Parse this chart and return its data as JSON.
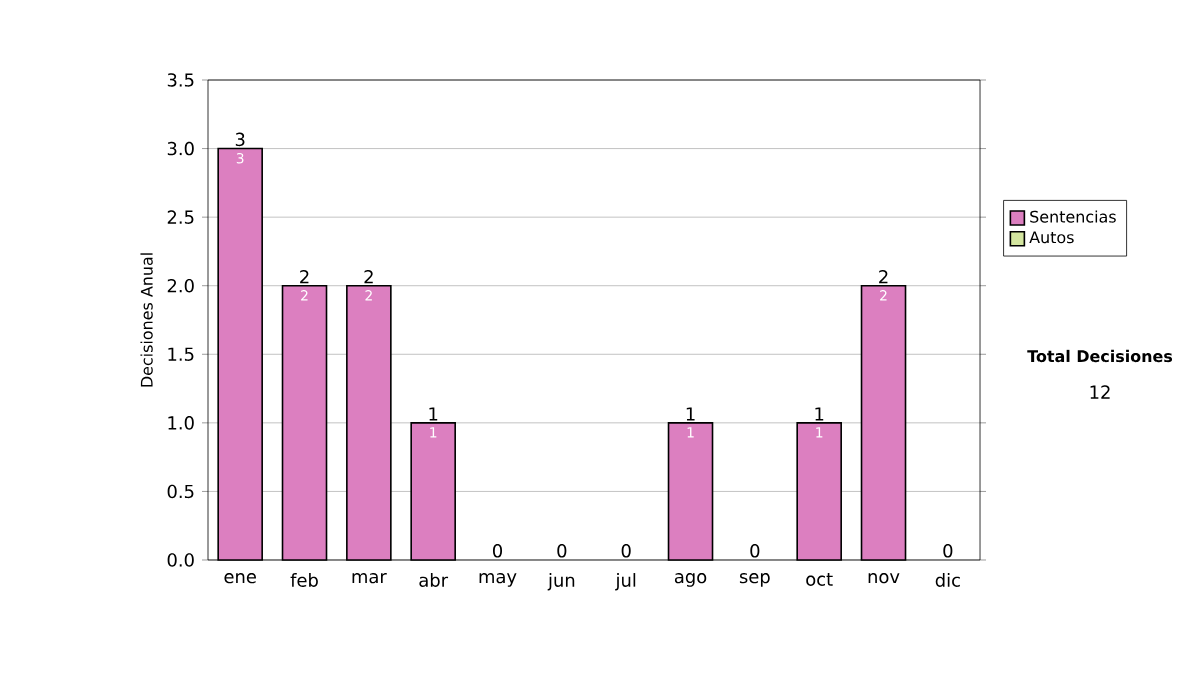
{
  "chart_data": {
    "type": "bar",
    "stacked": true,
    "ylabel": "Decisiones Anual",
    "categories": [
      "ene",
      "feb",
      "mar",
      "abr",
      "may",
      "jun",
      "jul",
      "ago",
      "sep",
      "oct",
      "nov",
      "dic"
    ],
    "series": [
      {
        "name": "Sentencias",
        "color": "#dc7fc0",
        "values": [
          3,
          2,
          2,
          1,
          0,
          0,
          0,
          1,
          0,
          1,
          2,
          0
        ],
        "value_labels": [
          "3",
          "2",
          "2",
          "1",
          null,
          null,
          null,
          "1",
          null,
          "1",
          "2",
          null
        ]
      },
      {
        "name": "Autos",
        "color": "#d4e6a0",
        "values": [
          0,
          0,
          0,
          0,
          0,
          0,
          0,
          0,
          0,
          0,
          0,
          0
        ]
      }
    ],
    "totals": [
      "3",
      "2",
      "2",
      "1",
      "0",
      "0",
      "0",
      "1",
      "0",
      "1",
      "2",
      "0"
    ],
    "ylim": [
      0,
      3.5
    ],
    "yticks": [
      {
        "value": 0,
        "label": "0.0"
      },
      {
        "value": 0.5,
        "label": "0.5"
      },
      {
        "value": 1,
        "label": "1.0"
      },
      {
        "value": 1.5,
        "label": "1.5"
      },
      {
        "value": 2,
        "label": "2.0"
      },
      {
        "value": 2.5,
        "label": "2.5"
      },
      {
        "value": 3,
        "label": "3.0"
      },
      {
        "value": 3.5,
        "label": "3.5"
      }
    ],
    "grid": "y",
    "legend": "right",
    "annotations": [
      "Total Decisiones",
      "12"
    ]
  }
}
